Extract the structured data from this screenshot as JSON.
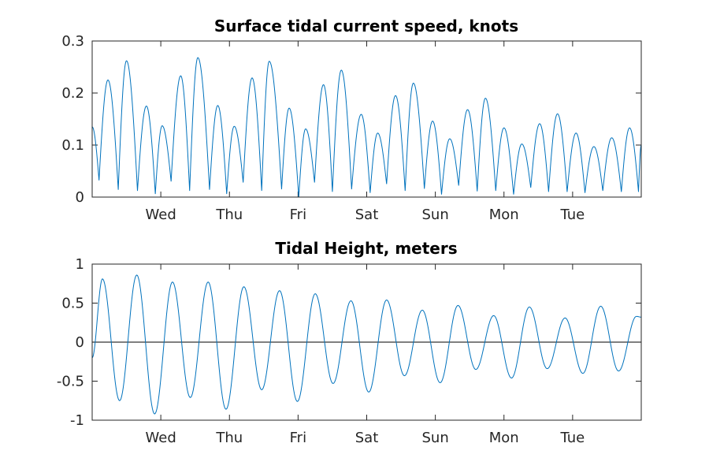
{
  "chart_data": [
    {
      "type": "line",
      "title": "Surface tidal current speed, knots",
      "xlabel": "",
      "ylabel": "",
      "x_ticks": [
        "Wed",
        "Thu",
        "Fri",
        "Sat",
        "Sun",
        "Mon",
        "Tue"
      ],
      "xlim_days": [
        0,
        8
      ],
      "x_tick_positions_days": [
        1,
        2,
        3,
        4,
        5,
        6,
        7
      ],
      "ylim": [
        0,
        0.3
      ],
      "y_ticks": [
        "0",
        "0.1",
        "0.2",
        "0.3"
      ],
      "y_tick_values": [
        0,
        0.1,
        0.2,
        0.3
      ],
      "grid": false,
      "line_color": "#0072bd",
      "peaks": [
        {
          "x": 0.0,
          "y": 0.135
        },
        {
          "x": 0.23,
          "y": 0.225
        },
        {
          "x": 0.5,
          "y": 0.262
        },
        {
          "x": 0.79,
          "y": 0.175
        },
        {
          "x": 1.02,
          "y": 0.137
        },
        {
          "x": 1.29,
          "y": 0.233
        },
        {
          "x": 1.54,
          "y": 0.268
        },
        {
          "x": 1.83,
          "y": 0.176
        },
        {
          "x": 2.07,
          "y": 0.136
        },
        {
          "x": 2.33,
          "y": 0.229
        },
        {
          "x": 2.58,
          "y": 0.261
        },
        {
          "x": 2.87,
          "y": 0.171
        },
        {
          "x": 3.11,
          "y": 0.131
        },
        {
          "x": 3.37,
          "y": 0.216
        },
        {
          "x": 3.63,
          "y": 0.244
        },
        {
          "x": 3.92,
          "y": 0.159
        },
        {
          "x": 4.16,
          "y": 0.123
        },
        {
          "x": 4.42,
          "y": 0.195
        },
        {
          "x": 4.68,
          "y": 0.219
        },
        {
          "x": 4.96,
          "y": 0.146
        },
        {
          "x": 5.21,
          "y": 0.112
        },
        {
          "x": 5.47,
          "y": 0.168
        },
        {
          "x": 5.73,
          "y": 0.19
        },
        {
          "x": 6.0,
          "y": 0.133
        },
        {
          "x": 6.26,
          "y": 0.102
        },
        {
          "x": 6.52,
          "y": 0.141
        },
        {
          "x": 6.78,
          "y": 0.16
        },
        {
          "x": 7.05,
          "y": 0.123
        },
        {
          "x": 7.31,
          "y": 0.097
        },
        {
          "x": 7.57,
          "y": 0.114
        },
        {
          "x": 7.83,
          "y": 0.133
        },
        {
          "x": 8.0,
          "y": 0.1
        }
      ],
      "troughs": [
        {
          "x": 0.1,
          "y": 0.032
        },
        {
          "x": 0.38,
          "y": 0.014
        },
        {
          "x": 0.66,
          "y": 0.012
        },
        {
          "x": 0.92,
          "y": 0.006
        },
        {
          "x": 1.15,
          "y": 0.03
        },
        {
          "x": 1.42,
          "y": 0.012
        },
        {
          "x": 1.71,
          "y": 0.014
        },
        {
          "x": 1.96,
          "y": 0.006
        },
        {
          "x": 2.2,
          "y": 0.028
        },
        {
          "x": 2.47,
          "y": 0.012
        },
        {
          "x": 2.76,
          "y": 0.015
        },
        {
          "x": 3.01,
          "y": 0.0
        },
        {
          "x": 3.24,
          "y": 0.028
        },
        {
          "x": 3.5,
          "y": 0.01
        },
        {
          "x": 3.78,
          "y": 0.015
        },
        {
          "x": 4.05,
          "y": 0.008
        },
        {
          "x": 4.29,
          "y": 0.025
        },
        {
          "x": 4.56,
          "y": 0.012
        },
        {
          "x": 4.84,
          "y": 0.016
        },
        {
          "x": 5.09,
          "y": 0.005
        },
        {
          "x": 5.34,
          "y": 0.022
        },
        {
          "x": 5.61,
          "y": 0.011
        },
        {
          "x": 5.88,
          "y": 0.012
        },
        {
          "x": 6.14,
          "y": 0.005
        },
        {
          "x": 6.39,
          "y": 0.018
        },
        {
          "x": 6.65,
          "y": 0.01
        },
        {
          "x": 6.92,
          "y": 0.01
        },
        {
          "x": 7.18,
          "y": 0.008
        },
        {
          "x": 7.44,
          "y": 0.012
        },
        {
          "x": 7.71,
          "y": 0.01
        },
        {
          "x": 7.96,
          "y": 0.01
        }
      ]
    },
    {
      "type": "line",
      "title": "Tidal Height, meters",
      "xlabel": "",
      "ylabel": "",
      "x_ticks": [
        "Wed",
        "Thu",
        "Fri",
        "Sat",
        "Sun",
        "Mon",
        "Tue"
      ],
      "xlim_days": [
        0,
        8
      ],
      "x_tick_positions_days": [
        1,
        2,
        3,
        4,
        5,
        6,
        7
      ],
      "ylim": [
        -1,
        1
      ],
      "y_ticks": [
        "1",
        "0.5",
        "0",
        "-0.5",
        "-1"
      ],
      "y_tick_values": [
        1,
        0.5,
        0,
        -0.5,
        -1
      ],
      "grid": false,
      "zero_line": true,
      "line_color": "#0072bd",
      "extrema": [
        {
          "x": 0.0,
          "y": -0.2
        },
        {
          "x": 0.15,
          "y": 0.81
        },
        {
          "x": 0.4,
          "y": -0.75
        },
        {
          "x": 0.65,
          "y": 0.86
        },
        {
          "x": 0.91,
          "y": -0.92
        },
        {
          "x": 1.17,
          "y": 0.77
        },
        {
          "x": 1.43,
          "y": -0.71
        },
        {
          "x": 1.69,
          "y": 0.77
        },
        {
          "x": 1.95,
          "y": -0.86
        },
        {
          "x": 2.21,
          "y": 0.71
        },
        {
          "x": 2.47,
          "y": -0.61
        },
        {
          "x": 2.73,
          "y": 0.66
        },
        {
          "x": 2.99,
          "y": -0.76
        },
        {
          "x": 3.25,
          "y": 0.62
        },
        {
          "x": 3.51,
          "y": -0.53
        },
        {
          "x": 3.77,
          "y": 0.53
        },
        {
          "x": 4.03,
          "y": -0.64
        },
        {
          "x": 4.29,
          "y": 0.54
        },
        {
          "x": 4.55,
          "y": -0.43
        },
        {
          "x": 4.81,
          "y": 0.41
        },
        {
          "x": 5.07,
          "y": -0.52
        },
        {
          "x": 5.33,
          "y": 0.47
        },
        {
          "x": 5.59,
          "y": -0.35
        },
        {
          "x": 5.85,
          "y": 0.34
        },
        {
          "x": 6.11,
          "y": -0.46
        },
        {
          "x": 6.37,
          "y": 0.45
        },
        {
          "x": 6.63,
          "y": -0.34
        },
        {
          "x": 6.89,
          "y": 0.31
        },
        {
          "x": 7.15,
          "y": -0.4
        },
        {
          "x": 7.41,
          "y": 0.46
        },
        {
          "x": 7.67,
          "y": -0.37
        },
        {
          "x": 7.93,
          "y": 0.33
        },
        {
          "x": 8.0,
          "y": 0.32
        }
      ]
    }
  ]
}
